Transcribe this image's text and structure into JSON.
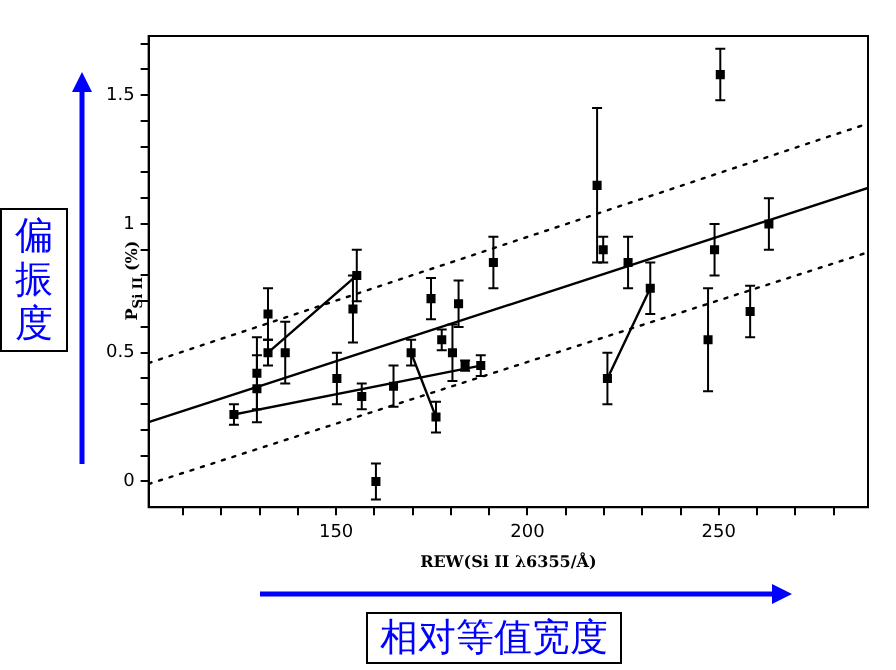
{
  "chart_data": {
    "type": "scatter",
    "xlabel": "REW(Si II λ6355/Å)",
    "ylabel": "P$_{Si II}$ (%)",
    "annotations": [
      "偏振度",
      "相对等值宽度"
    ],
    "xlim": [
      101,
      289
    ],
    "ylim": [
      -0.1,
      1.73
    ],
    "xticks": [
      {
        "value": 110,
        "label": null
      },
      {
        "value": 120,
        "label": null
      },
      {
        "value": 130,
        "label": null
      },
      {
        "value": 140,
        "label": null
      },
      150,
      {
        "value": 160,
        "label": null
      },
      {
        "value": 170,
        "label": null
      },
      {
        "value": 180,
        "label": null
      },
      {
        "value": 190,
        "label": null
      },
      200,
      {
        "value": 210,
        "label": null
      },
      {
        "value": 220,
        "label": null
      },
      {
        "value": 230,
        "label": null
      },
      {
        "value": 240,
        "label": null
      },
      250,
      {
        "value": 260,
        "label": null
      },
      {
        "value": 270,
        "label": null
      },
      {
        "value": 280,
        "label": null
      }
    ],
    "yticks": [
      0,
      {
        "value": 0.1,
        "label": null
      },
      {
        "value": 0.2,
        "label": null
      },
      {
        "value": 0.3,
        "label": null
      },
      {
        "value": 0.4,
        "label": null
      },
      0.5,
      {
        "value": 0.6,
        "label": null
      },
      {
        "value": 0.7,
        "label": null
      },
      {
        "value": 0.8,
        "label": null
      },
      {
        "value": 0.9,
        "label": null
      },
      1,
      {
        "value": 1.1,
        "label": null
      },
      {
        "value": 1.2,
        "label": null
      },
      {
        "value": 1.3,
        "label": null
      },
      {
        "value": 1.4,
        "label": null
      },
      1.5,
      {
        "value": 1.6,
        "label": null
      },
      {
        "value": 1.7,
        "label": null
      }
    ],
    "grid": false,
    "legend": false,
    "series": [
      {
        "color": "#000000",
        "marker": "square",
        "x": [
          123.3,
          129.3,
          129.3,
          132.2,
          132.2,
          136.7,
          150.2,
          154.4,
          155.4,
          156.7,
          160.4,
          165,
          169.6,
          174.8,
          176.1,
          177.6,
          180.4,
          182,
          183.7,
          187.8,
          191.1,
          218.2,
          219.8,
          220.9,
          226.3,
          232.1,
          247.2,
          248.9,
          250.4,
          258.2,
          263.1
        ],
        "values": [
          0.26,
          0.42,
          0.36,
          0.5,
          0.65,
          0.5,
          0.4,
          0.67,
          0.8,
          0.33,
          0.0,
          0.37,
          0.5,
          0.71,
          0.25,
          0.55,
          0.5,
          0.69,
          0.45,
          0.45,
          0.85,
          1.15,
          0.9,
          0.4,
          0.85,
          0.75,
          0.55,
          0.9,
          1.58,
          0.66,
          1.0
        ],
        "errors": [
          0.04,
          0.14,
          0.13,
          0.05,
          0.1,
          0.12,
          0.1,
          0.13,
          0.1,
          0.05,
          0.07,
          0.08,
          0.05,
          0.08,
          0.06,
          0.04,
          0.11,
          0.09,
          0.02,
          0.04,
          0.1,
          0.3,
          0.05,
          0.1,
          0.1,
          0.1,
          0.2,
          0.1,
          0.1,
          0.1,
          0.1
        ]
      },
      {
        "type": "line",
        "color": "#000000",
        "line_style": "solid",
        "x": [
          101,
          289
        ],
        "values": [
          0.23,
          1.14
        ]
      },
      {
        "type": "line",
        "color": "#000000",
        "line_style": "dotted",
        "x": [
          101,
          289
        ],
        "values": [
          0.46,
          1.39
        ]
      },
      {
        "type": "line",
        "color": "#000000",
        "line_style": "dotted",
        "x": [
          101,
          289
        ],
        "values": [
          -0.01,
          0.89
        ]
      },
      {
        "type": "line",
        "color": "#000000",
        "line_style": "solid",
        "x": [
          132.2,
          155.4
        ],
        "values": [
          0.5,
          0.8
        ]
      },
      {
        "type": "line",
        "color": "#000000",
        "line_style": "solid",
        "x": [
          123.3,
          187.8
        ],
        "values": [
          0.26,
          0.45
        ]
      },
      {
        "type": "line",
        "color": "#000000",
        "line_style": "solid",
        "x": [
          169.6,
          176.1
        ],
        "values": [
          0.5,
          0.25
        ]
      },
      {
        "type": "line",
        "color": "#000000",
        "line_style": "solid",
        "x": [
          220.9,
          232.1
        ],
        "values": [
          0.4,
          0.75
        ]
      }
    ]
  }
}
